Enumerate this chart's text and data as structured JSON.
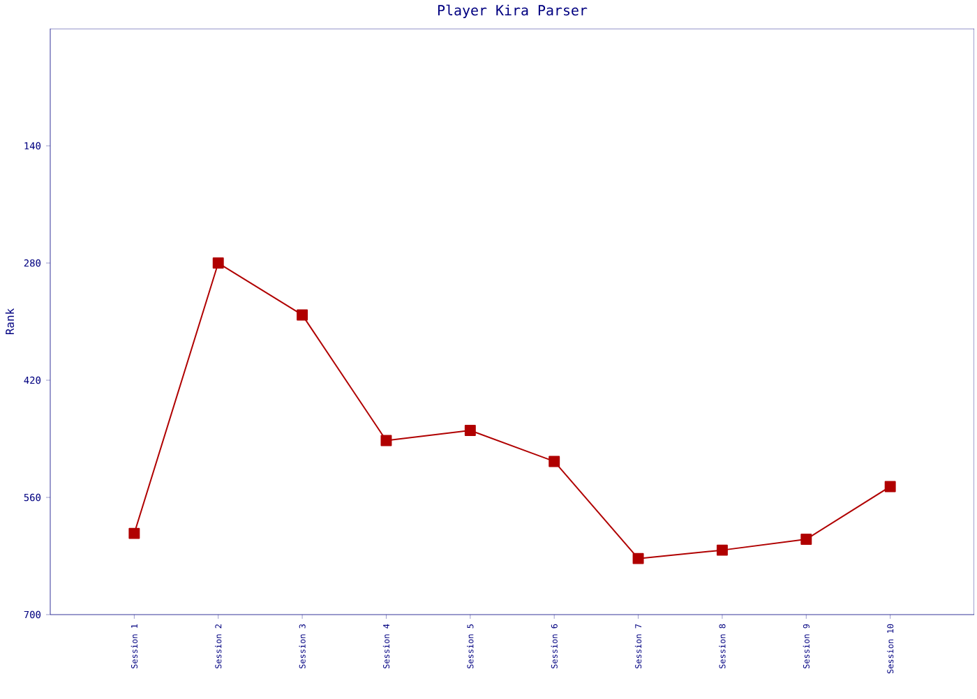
{
  "chart_data": {
    "type": "line",
    "title": "Player Kira Parser",
    "ylabel": "Rank",
    "categories": [
      "Session 1",
      "Session 2",
      "Session 3",
      "Session 4",
      "Session 5",
      "Session 6",
      "Session 7",
      "Session 8",
      "Session 9",
      "Session 10"
    ],
    "series": [
      {
        "color": "#b00000",
        "values": [
          603,
          280,
          342,
          492,
          480,
          517,
          633,
          623,
          610,
          547
        ]
      }
    ],
    "ylim": [
      700,
      0
    ],
    "yticks": [
      140,
      280,
      420,
      560,
      700
    ],
    "marker": "square",
    "line_style": "solid"
  }
}
